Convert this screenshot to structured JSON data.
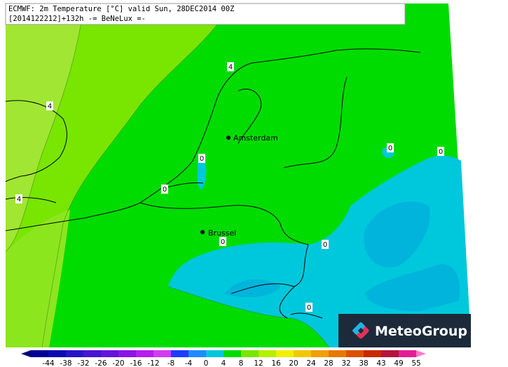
{
  "header": {
    "line1": "ECMWF: 2m Temperature [°C] valid Sun, 28DEC2014 00Z",
    "line2": "[2014122212]+132h  -= BeNeLux =-"
  },
  "cities": [
    "Amsterdam",
    "Brussel"
  ],
  "contour_labels": [
    "4",
    "4",
    "4",
    "0",
    "0",
    "0",
    "0",
    "0",
    "0",
    "0"
  ],
  "logo": "MeteoGroup",
  "colorbar": {
    "labels": [
      "-44",
      "-38",
      "-32",
      "-26",
      "-20",
      "-16",
      "-12",
      "-8",
      "-4",
      "0",
      "4",
      "8",
      "12",
      "16",
      "20",
      "24",
      "28",
      "32",
      "38",
      "43",
      "49",
      "55"
    ],
    "colors": [
      "#000078",
      "#000096",
      "#0a0ab4",
      "#2814c8",
      "#4614d2",
      "#6414dc",
      "#8c14e6",
      "#b41ef0",
      "#d23cf0",
      "#1e3cff",
      "#1e8cff",
      "#00c8dc",
      "#00dc00",
      "#78e600",
      "#b4f000",
      "#f0f000",
      "#f0c800",
      "#f0a000",
      "#e67800",
      "#dc5000",
      "#c82800",
      "#b4143c",
      "#e61e96",
      "#ff78c8"
    ]
  }
}
